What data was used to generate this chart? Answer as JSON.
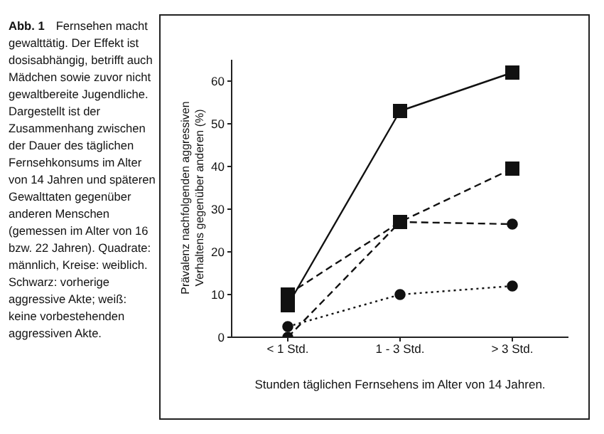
{
  "chart_data": {
    "type": "line",
    "title": "Abb. 1",
    "annotations": [
      "Fernsehen macht gewalttätig. Der Effekt ist dosisabhängig, betrifft auch Mädchen sowie zuvor nicht gewaltbereite Jugendliche. Dargestellt ist der Zusammenhang zwischen der Dauer des täglichen Fernsehkonsums im Alter von 14 Jahren und späteren Gewalttaten gegenüber anderen Menschen (gemessen im Alter von 16 bzw. 22 Jahren). Quadrate: männlich, Kreise: weiblich. Schwarz: vorherige aggressive Akte; weiß: keine vorbestehenden aggressiven Akte."
    ],
    "xlabel": "Stunden täglichen Fernsehens im Alter von 14 Jahren.",
    "ylabel": "Prävalenz nachfolgenden aggressiven Verhaltens gegenüber anderen (%)",
    "categories": [
      "< 1 Std.",
      "1 - 3 Std.",
      "> 3 Std."
    ],
    "ylim": [
      0,
      65
    ],
    "yticks": [
      0,
      10,
      20,
      30,
      40,
      50,
      60
    ],
    "grid": false,
    "legend": false,
    "series": [
      {
        "color": "#111111",
        "marker": "square",
        "line_style": "solid",
        "values": [
          7.5,
          53,
          62
        ]
      },
      {
        "color": "#111111",
        "marker": "square",
        "line_style": "dashed",
        "values": [
          10,
          27,
          39.5
        ]
      },
      {
        "color": "#111111",
        "marker": "circle",
        "line_style": "dashed",
        "values": [
          0,
          27,
          26.5
        ]
      },
      {
        "color": "#111111",
        "marker": "circle",
        "line_style": "dotted",
        "values": [
          2.5,
          10,
          12
        ]
      }
    ]
  }
}
